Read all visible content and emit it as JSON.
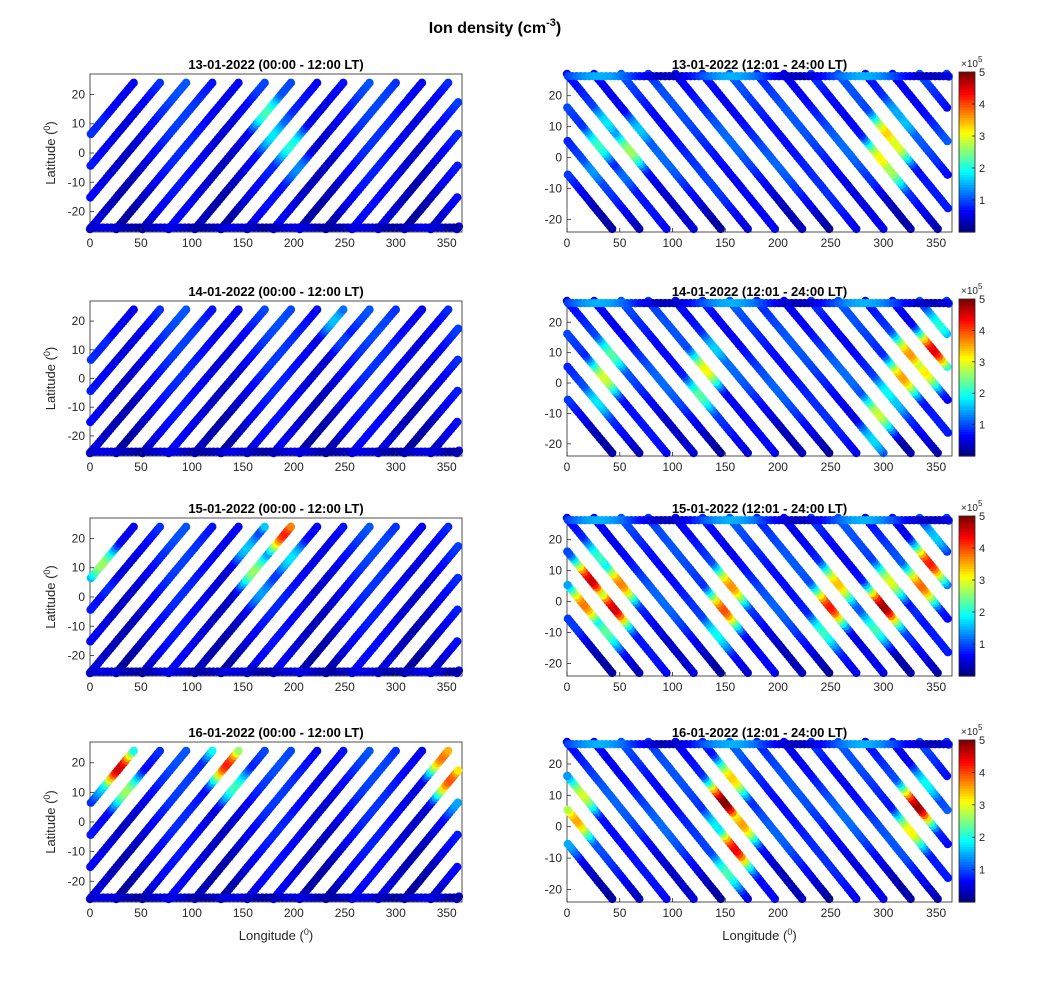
{
  "figure": {
    "title_main": "Ion density (cm",
    "title_exp": "-3",
    "title_close": ")"
  },
  "chart_data": [
    {
      "type": "scatter",
      "title": "13-01-2022 (00:00 - 12:00 LT)",
      "xlabel": "",
      "ylabel": "Latitude (0)",
      "xlim": [
        0,
        365
      ],
      "ylim": [
        -27,
        27
      ],
      "xticks": [
        0,
        50,
        100,
        150,
        200,
        250,
        300,
        350
      ],
      "yticks": [
        -20,
        -10,
        0,
        10,
        20
      ],
      "orientation": "ascending",
      "tracks": 14,
      "hotspots": [
        {
          "lon": 5,
          "lat": 22,
          "value": 1.9
        },
        {
          "lon": 175,
          "lat": 12,
          "value": 2.1
        },
        {
          "lon": 200,
          "lat": 2,
          "value": 2.0
        }
      ],
      "colorbar": false
    },
    {
      "type": "scatter",
      "title": "13-01-2022 (12:01 - 24:00 LT)",
      "xlabel": "",
      "ylabel": "",
      "xlim": [
        0,
        365
      ],
      "ylim": [
        -24,
        27
      ],
      "xticks": [
        0,
        50,
        100,
        150,
        200,
        250,
        300,
        350
      ],
      "yticks": [
        -20,
        -10,
        0,
        10,
        20
      ],
      "orientation": "descending",
      "tracks": 14,
      "hotspots": [
        {
          "lon": 60,
          "lat": 3,
          "value": 2.6
        },
        {
          "lon": 30,
          "lat": 5,
          "value": 2.4
        },
        {
          "lon": 300,
          "lat": 5,
          "value": 3.8
        },
        {
          "lon": 310,
          "lat": 2,
          "value": 3.4
        }
      ],
      "colorbar": true,
      "colorbar_ticks": [
        1,
        2,
        3,
        4,
        5
      ],
      "colorbar_exponent": "×10^5",
      "clim": [
        0,
        5
      ]
    },
    {
      "type": "scatter",
      "title": "14-01-2022 (00:00 - 12:00 LT)",
      "xlabel": "",
      "ylabel": "Latitude (0)",
      "xlim": [
        0,
        365
      ],
      "ylim": [
        -27,
        27
      ],
      "xticks": [
        0,
        50,
        100,
        150,
        200,
        250,
        300,
        350
      ],
      "yticks": [
        -20,
        -10,
        0,
        10,
        20
      ],
      "orientation": "ascending",
      "tracks": 14,
      "hotspots": [
        {
          "lon": 240,
          "lat": 20,
          "value": 1.8
        },
        {
          "lon": 10,
          "lat": 22,
          "value": 1.6
        }
      ],
      "colorbar": false
    },
    {
      "type": "scatter",
      "title": "14-01-2022 (12:01 - 24:00 LT)",
      "xlabel": "",
      "ylabel": "",
      "xlim": [
        0,
        365
      ],
      "ylim": [
        -24,
        27
      ],
      "xticks": [
        0,
        50,
        100,
        150,
        200,
        250,
        300,
        350
      ],
      "yticks": [
        -20,
        -10,
        0,
        10,
        20
      ],
      "orientation": "descending",
      "tracks": 14,
      "hotspots": [
        {
          "lon": 35,
          "lat": 3,
          "value": 3.2
        },
        {
          "lon": 130,
          "lat": 3,
          "value": 3.3
        },
        {
          "lon": 345,
          "lat": 10,
          "value": 4.6
        },
        {
          "lon": 320,
          "lat": 5,
          "value": 4.2
        },
        {
          "lon": 295,
          "lat": -10,
          "value": 3.0
        }
      ],
      "colorbar": true,
      "colorbar_ticks": [
        1,
        2,
        3,
        4,
        5
      ],
      "colorbar_exponent": "×10^5",
      "clim": [
        0,
        5
      ]
    },
    {
      "type": "scatter",
      "title": "15-01-2022 (00:00 - 12:00 LT)",
      "xlabel": "",
      "ylabel": "Latitude (0)",
      "xlim": [
        0,
        365
      ],
      "ylim": [
        -27,
        27
      ],
      "xticks": [
        0,
        50,
        100,
        150,
        200,
        250,
        300,
        350
      ],
      "yticks": [
        -20,
        -10,
        0,
        10,
        20
      ],
      "orientation": "ascending",
      "tracks": 14,
      "hotspots": [
        {
          "lon": 10,
          "lat": 15,
          "value": 2.9
        },
        {
          "lon": 190,
          "lat": 24,
          "value": 4.2
        },
        {
          "lon": 160,
          "lat": 10,
          "value": 2.6
        }
      ],
      "colorbar": false
    },
    {
      "type": "scatter",
      "title": "15-01-2022 (12:01 - 24:00 LT)",
      "xlabel": "",
      "ylabel": "",
      "xlim": [
        0,
        365
      ],
      "ylim": [
        -24,
        27
      ],
      "xticks": [
        0,
        50,
        100,
        150,
        200,
        250,
        300,
        350
      ],
      "yticks": [
        -20,
        -10,
        0,
        10,
        20
      ],
      "orientation": "descending",
      "tracks": 14,
      "hotspots": [
        {
          "lon": 20,
          "lat": 5,
          "value": 5.0
        },
        {
          "lon": 45,
          "lat": 0,
          "value": 5.0
        },
        {
          "lon": 150,
          "lat": 0,
          "value": 4.5
        },
        {
          "lon": 250,
          "lat": 0,
          "value": 4.6
        },
        {
          "lon": 300,
          "lat": 0,
          "value": 4.8
        },
        {
          "lon": 340,
          "lat": 10,
          "value": 4.7
        }
      ],
      "colorbar": true,
      "colorbar_ticks": [
        1,
        2,
        3,
        4,
        5
      ],
      "colorbar_exponent": "×10^5",
      "clim": [
        0,
        5
      ]
    },
    {
      "type": "scatter",
      "title": "16-01-2022 (00:00 - 12:00 LT)",
      "xlabel": "Longitude (0)",
      "ylabel": "Latitude (0)",
      "xlim": [
        0,
        365
      ],
      "ylim": [
        -27,
        27
      ],
      "xticks": [
        0,
        50,
        100,
        150,
        200,
        250,
        300,
        350
      ],
      "yticks": [
        -20,
        -10,
        0,
        10,
        20
      ],
      "orientation": "ascending",
      "tracks": 14,
      "hotspots": [
        {
          "lon": 30,
          "lat": 18,
          "value": 4.8
        },
        {
          "lon": 135,
          "lat": 20,
          "value": 4.5
        },
        {
          "lon": 350,
          "lat": 18,
          "value": 4.5
        },
        {
          "lon": 10,
          "lat": 22,
          "value": 3.6
        }
      ],
      "colorbar": false
    },
    {
      "type": "scatter",
      "title": "16-01-2022 (12:01 - 24:00 LT)",
      "xlabel": "Longitude (0)",
      "ylabel": "",
      "xlim": [
        0,
        365
      ],
      "ylim": [
        -24,
        27
      ],
      "xticks": [
        0,
        50,
        100,
        150,
        200,
        250,
        300,
        350
      ],
      "yticks": [
        -20,
        -10,
        0,
        10,
        20
      ],
      "orientation": "descending",
      "tracks": 14,
      "hotspots": [
        {
          "lon": 150,
          "lat": 10,
          "value": 5.0
        },
        {
          "lon": 160,
          "lat": -5,
          "value": 4.8
        },
        {
          "lon": 330,
          "lat": 5,
          "value": 4.8
        },
        {
          "lon": 10,
          "lat": 5,
          "value": 3.8
        }
      ],
      "colorbar": true,
      "colorbar_ticks": [
        1,
        2,
        3,
        4,
        5
      ],
      "colorbar_exponent": "×10^5",
      "clim": [
        0,
        5
      ]
    }
  ]
}
